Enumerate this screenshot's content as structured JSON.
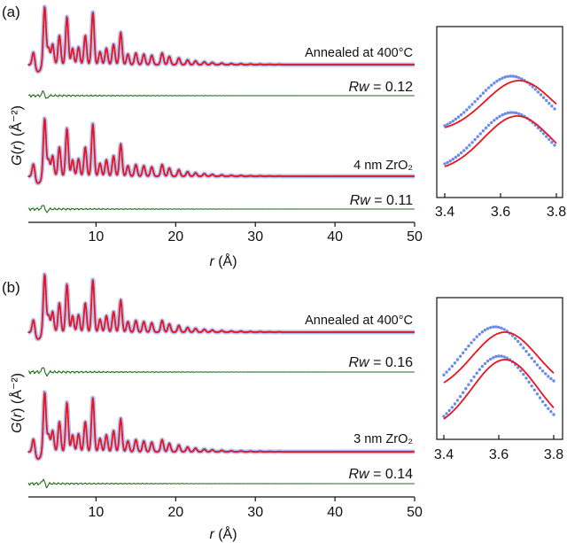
{
  "figure": {
    "panels": [
      {
        "label": "(a)",
        "ylabel_prefix": "G",
        "ylabel_var": "r",
        "ylabel_unit": "(Å⁻²)",
        "xlabel_var": "r",
        "xlabel_unit": "(Å)",
        "curves": [
          {
            "name": "Annealed at 400°C",
            "rw_label": "Rw",
            "rw_value": "= 0.12"
          },
          {
            "name": "4 nm ZrO₂",
            "rw_label": "Rw",
            "rw_value": "= 0.11"
          }
        ]
      },
      {
        "label": "(b)",
        "ylabel_prefix": "G",
        "ylabel_var": "r",
        "ylabel_unit": "(Å⁻²)",
        "xlabel_var": "r",
        "xlabel_unit": "(Å)",
        "curves": [
          {
            "name": "Annealed at 400°C",
            "rw_label": "Rw",
            "rw_value": "= 0.16"
          },
          {
            "name": "3 nm ZrO₂",
            "rw_label": "Rw",
            "rw_value": "= 0.14"
          }
        ]
      }
    ]
  },
  "colors": {
    "data_points": "#6b8be8",
    "data_halo": "#b9c6f2",
    "fit": "#e8141e",
    "difference": "#1f6e1a",
    "axis": "#111111"
  },
  "chart_data": [
    {
      "type": "line",
      "panel": "(a) main",
      "xlabel": "r (Å)",
      "ylabel": "G(r) (Å⁻²)",
      "xlim": [
        1.5,
        50
      ],
      "xticks": [
        10,
        20,
        30,
        40,
        50
      ],
      "series": [
        {
          "name": "Annealed at 400°C data",
          "style": "dots"
        },
        {
          "name": "Annealed at 400°C fit",
          "style": "line"
        },
        {
          "name": "Annealed at 400°C difference",
          "style": "line",
          "Rw": 0.12
        },
        {
          "name": "4 nm ZrO₂ data",
          "style": "dots"
        },
        {
          "name": "4 nm ZrO₂ fit",
          "style": "line"
        },
        {
          "name": "4 nm ZrO₂ difference",
          "style": "line",
          "Rw": 0.11
        }
      ],
      "peak_positions": [
        2.15,
        3.55,
        4.05,
        4.55,
        5.4,
        6.35,
        7.05,
        7.8,
        8.65,
        9.6,
        10.5,
        11.3,
        12.2,
        13.1,
        14.0,
        15.0,
        16.0,
        17.0,
        18.3,
        19.2,
        20.4,
        21.5,
        22.5,
        23.6,
        24.6,
        25.8,
        27.0,
        28.2,
        29.4,
        30.6,
        31.8,
        33.0
      ]
    },
    {
      "type": "line",
      "panel": "(a) inset",
      "xlim": [
        3.4,
        3.8
      ],
      "xticks": [
        3.4,
        3.6,
        3.8
      ],
      "series": [
        {
          "name": "Annealed at 400°C data",
          "style": "dots",
          "peak_x": 3.595
        },
        {
          "name": "Annealed at 400°C fit",
          "style": "line",
          "peak_x": 3.635
        },
        {
          "name": "4 nm ZrO₂ data",
          "style": "dots",
          "peak_x": 3.6
        },
        {
          "name": "4 nm ZrO₂ fit",
          "style": "line",
          "peak_x": 3.625
        }
      ]
    },
    {
      "type": "line",
      "panel": "(b) main",
      "xlabel": "r (Å)",
      "ylabel": "G(r) (Å⁻²)",
      "xlim": [
        1.5,
        50
      ],
      "xticks": [
        10,
        20,
        30,
        40,
        50
      ],
      "series": [
        {
          "name": "Annealed at 400°C data",
          "style": "dots"
        },
        {
          "name": "Annealed at 400°C fit",
          "style": "line"
        },
        {
          "name": "Annealed at 400°C difference",
          "style": "line",
          "Rw": 0.16
        },
        {
          "name": "3 nm ZrO₂ data",
          "style": "dots"
        },
        {
          "name": "3 nm ZrO₂ fit",
          "style": "line"
        },
        {
          "name": "3 nm ZrO₂ difference",
          "style": "line",
          "Rw": 0.14
        }
      ],
      "peak_positions": [
        2.15,
        3.55,
        4.05,
        4.55,
        5.4,
        6.35,
        7.05,
        7.8,
        8.65,
        9.6,
        10.5,
        11.3,
        12.2,
        13.1,
        14.0,
        15.0,
        16.0,
        17.0,
        18.3,
        19.2,
        20.4,
        21.5,
        22.5,
        23.6,
        24.6,
        25.8,
        27.0,
        28.2,
        29.4,
        30.6,
        31.8,
        33.0
      ]
    },
    {
      "type": "line",
      "panel": "(b) inset",
      "xlim": [
        3.4,
        3.8
      ],
      "xticks": [
        3.4,
        3.6,
        3.8
      ],
      "series": [
        {
          "name": "Annealed at 400°C data",
          "style": "dots",
          "peak_x": 3.595
        },
        {
          "name": "Annealed at 400°C fit",
          "style": "line",
          "peak_x": 3.64
        },
        {
          "name": "3 nm ZrO₂ data",
          "style": "dots",
          "peak_x": 3.605
        },
        {
          "name": "3 nm ZrO₂ fit",
          "style": "line",
          "peak_x": 3.63
        }
      ]
    }
  ]
}
